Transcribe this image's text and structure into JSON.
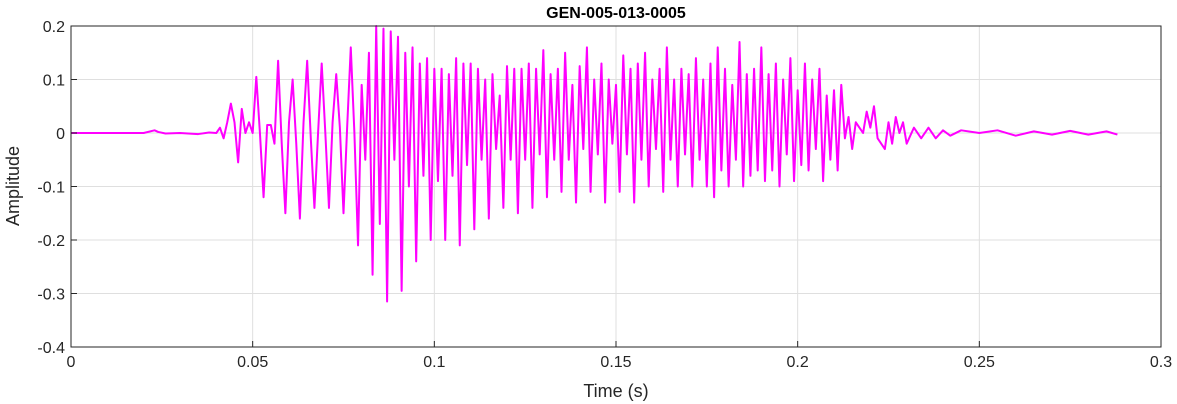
{
  "chart_data": {
    "type": "line",
    "title": "GEN-005-013-0005",
    "xlabel": "Time (s)",
    "ylabel": "Amplitude",
    "xlim": [
      0,
      0.3
    ],
    "ylim": [
      -0.4,
      0.2
    ],
    "xticks": [
      0,
      0.05,
      0.1,
      0.15,
      0.2,
      0.25,
      0.3
    ],
    "xtick_labels": [
      "0",
      "0.05",
      "0.1",
      "0.15",
      "0.2",
      "0.25",
      "0.3"
    ],
    "yticks": [
      -0.4,
      -0.3,
      -0.2,
      -0.1,
      0,
      0.1,
      0.2
    ],
    "ytick_labels": [
      "-0.4",
      "-0.3",
      "-0.2",
      "-0.1",
      "0",
      "0.1",
      "0.2"
    ],
    "grid": true,
    "legend": "none",
    "series": [
      {
        "color": "#ff00ff",
        "points": [
          [
            0,
            0
          ],
          [
            0.005,
            0.0
          ],
          [
            0.01,
            0.0
          ],
          [
            0.015,
            0.0
          ],
          [
            0.02,
            0.0
          ],
          [
            0.023,
            0.005
          ],
          [
            0.024,
            0.002
          ],
          [
            0.026,
            -0.001
          ],
          [
            0.03,
            0.0
          ],
          [
            0.035,
            -0.002
          ],
          [
            0.038,
            0.001
          ],
          [
            0.04,
            0.0
          ],
          [
            0.041,
            0.01
          ],
          [
            0.042,
            -0.01
          ],
          [
            0.043,
            0.02
          ],
          [
            0.044,
            0.055
          ],
          [
            0.045,
            0.02
          ],
          [
            0.046,
            -0.055
          ],
          [
            0.047,
            0.045
          ],
          [
            0.048,
            0.0
          ],
          [
            0.049,
            0.02
          ],
          [
            0.05,
            0.0
          ],
          [
            0.051,
            0.105
          ],
          [
            0.052,
            0.0
          ],
          [
            0.053,
            -0.12
          ],
          [
            0.054,
            0.015
          ],
          [
            0.055,
            0.015
          ],
          [
            0.056,
            -0.02
          ],
          [
            0.057,
            0.135
          ],
          [
            0.058,
            -0.02
          ],
          [
            0.059,
            -0.15
          ],
          [
            0.06,
            0.02
          ],
          [
            0.061,
            0.1
          ],
          [
            0.062,
            -0.02
          ],
          [
            0.063,
            -0.16
          ],
          [
            0.064,
            0.02
          ],
          [
            0.065,
            0.135
          ],
          [
            0.066,
            -0.01
          ],
          [
            0.067,
            -0.14
          ],
          [
            0.068,
            0.0
          ],
          [
            0.069,
            0.13
          ],
          [
            0.07,
            0.0
          ],
          [
            0.071,
            -0.14
          ],
          [
            0.072,
            0.02
          ],
          [
            0.073,
            0.11
          ],
          [
            0.074,
            0.01
          ],
          [
            0.075,
            -0.15
          ],
          [
            0.076,
            0.01
          ],
          [
            0.077,
            0.16
          ],
          [
            0.078,
            0.0
          ],
          [
            0.079,
            -0.21
          ],
          [
            0.08,
            0.09
          ],
          [
            0.081,
            -0.05
          ],
          [
            0.082,
            0.15
          ],
          [
            0.083,
            -0.265
          ],
          [
            0.084,
            0.2
          ],
          [
            0.085,
            -0.17
          ],
          [
            0.086,
            0.195
          ],
          [
            0.087,
            -0.315
          ],
          [
            0.088,
            0.19
          ],
          [
            0.089,
            -0.05
          ],
          [
            0.09,
            0.18
          ],
          [
            0.091,
            -0.295
          ],
          [
            0.092,
            0.15
          ],
          [
            0.093,
            -0.1
          ],
          [
            0.094,
            0.16
          ],
          [
            0.095,
            -0.24
          ],
          [
            0.096,
            0.13
          ],
          [
            0.097,
            -0.08
          ],
          [
            0.098,
            0.14
          ],
          [
            0.099,
            -0.2
          ],
          [
            0.1,
            0.12
          ],
          [
            0.101,
            -0.09
          ],
          [
            0.102,
            0.12
          ],
          [
            0.103,
            -0.2
          ],
          [
            0.104,
            0.11
          ],
          [
            0.105,
            -0.08
          ],
          [
            0.106,
            0.14
          ],
          [
            0.107,
            -0.21
          ],
          [
            0.108,
            0.13
          ],
          [
            0.109,
            -0.06
          ],
          [
            0.11,
            0.13
          ],
          [
            0.111,
            -0.18
          ],
          [
            0.112,
            0.12
          ],
          [
            0.113,
            -0.05
          ],
          [
            0.114,
            0.1
          ],
          [
            0.115,
            -0.16
          ],
          [
            0.116,
            0.11
          ],
          [
            0.117,
            -0.03
          ],
          [
            0.118,
            0.07
          ],
          [
            0.119,
            -0.14
          ],
          [
            0.12,
            0.125
          ],
          [
            0.121,
            -0.05
          ],
          [
            0.122,
            0.12
          ],
          [
            0.123,
            -0.15
          ],
          [
            0.124,
            0.12
          ],
          [
            0.125,
            -0.05
          ],
          [
            0.126,
            0.13
          ],
          [
            0.127,
            -0.14
          ],
          [
            0.128,
            0.12
          ],
          [
            0.129,
            -0.04
          ],
          [
            0.13,
            0.155
          ],
          [
            0.131,
            -0.12
          ],
          [
            0.132,
            0.11
          ],
          [
            0.133,
            -0.05
          ],
          [
            0.134,
            0.12
          ],
          [
            0.135,
            -0.11
          ],
          [
            0.136,
            0.15
          ],
          [
            0.137,
            -0.05
          ],
          [
            0.138,
            0.09
          ],
          [
            0.139,
            -0.13
          ],
          [
            0.14,
            0.125
          ],
          [
            0.141,
            -0.03
          ],
          [
            0.142,
            0.16
          ],
          [
            0.143,
            -0.11
          ],
          [
            0.144,
            0.1
          ],
          [
            0.145,
            -0.04
          ],
          [
            0.146,
            0.13
          ],
          [
            0.147,
            -0.13
          ],
          [
            0.148,
            0.1
          ],
          [
            0.149,
            -0.02
          ],
          [
            0.15,
            0.09
          ],
          [
            0.151,
            -0.11
          ],
          [
            0.152,
            0.145
          ],
          [
            0.153,
            -0.04
          ],
          [
            0.154,
            0.12
          ],
          [
            0.155,
            -0.13
          ],
          [
            0.156,
            0.13
          ],
          [
            0.157,
            -0.05
          ],
          [
            0.158,
            0.15
          ],
          [
            0.159,
            -0.1
          ],
          [
            0.16,
            0.1
          ],
          [
            0.161,
            -0.03
          ],
          [
            0.162,
            0.12
          ],
          [
            0.163,
            -0.11
          ],
          [
            0.164,
            0.16
          ],
          [
            0.165,
            -0.05
          ],
          [
            0.166,
            0.1
          ],
          [
            0.167,
            -0.1
          ],
          [
            0.168,
            0.12
          ],
          [
            0.169,
            -0.04
          ],
          [
            0.17,
            0.11
          ],
          [
            0.171,
            -0.1
          ],
          [
            0.172,
            0.14
          ],
          [
            0.173,
            -0.05
          ],
          [
            0.174,
            0.1
          ],
          [
            0.175,
            -0.1
          ],
          [
            0.176,
            0.13
          ],
          [
            0.177,
            -0.12
          ],
          [
            0.178,
            0.16
          ],
          [
            0.179,
            -0.07
          ],
          [
            0.18,
            0.12
          ],
          [
            0.181,
            -0.1
          ],
          [
            0.182,
            0.09
          ],
          [
            0.183,
            -0.05
          ],
          [
            0.184,
            0.17
          ],
          [
            0.185,
            -0.1
          ],
          [
            0.186,
            0.11
          ],
          [
            0.187,
            -0.08
          ],
          [
            0.188,
            0.12
          ],
          [
            0.189,
            -0.07
          ],
          [
            0.19,
            0.16
          ],
          [
            0.191,
            -0.09
          ],
          [
            0.192,
            0.11
          ],
          [
            0.193,
            -0.07
          ],
          [
            0.194,
            0.13
          ],
          [
            0.195,
            -0.1
          ],
          [
            0.196,
            0.1
          ],
          [
            0.197,
            -0.04
          ],
          [
            0.198,
            0.14
          ],
          [
            0.199,
            -0.09
          ],
          [
            0.2,
            0.08
          ],
          [
            0.201,
            -0.06
          ],
          [
            0.202,
            0.13
          ],
          [
            0.203,
            -0.07
          ],
          [
            0.204,
            0.1
          ],
          [
            0.205,
            -0.03
          ],
          [
            0.206,
            0.12
          ],
          [
            0.207,
            -0.09
          ],
          [
            0.208,
            0.07
          ],
          [
            0.209,
            -0.05
          ],
          [
            0.21,
            0.08
          ],
          [
            0.211,
            -0.07
          ],
          [
            0.212,
            0.09
          ],
          [
            0.213,
            -0.01
          ],
          [
            0.214,
            0.03
          ],
          [
            0.215,
            -0.03
          ],
          [
            0.216,
            0.02
          ],
          [
            0.218,
            0.0
          ],
          [
            0.219,
            0.04
          ],
          [
            0.22,
            0.01
          ],
          [
            0.221,
            0.05
          ],
          [
            0.222,
            -0.01
          ],
          [
            0.224,
            -0.03
          ],
          [
            0.225,
            0.02
          ],
          [
            0.226,
            -0.02
          ],
          [
            0.227,
            0.03
          ],
          [
            0.228,
            0.0
          ],
          [
            0.229,
            0.02
          ],
          [
            0.23,
            -0.02
          ],
          [
            0.232,
            0.01
          ],
          [
            0.234,
            -0.01
          ],
          [
            0.236,
            0.01
          ],
          [
            0.238,
            -0.01
          ],
          [
            0.24,
            0.005
          ],
          [
            0.242,
            -0.005
          ],
          [
            0.245,
            0.005
          ],
          [
            0.25,
            0.0
          ],
          [
            0.255,
            0.005
          ],
          [
            0.26,
            -0.005
          ],
          [
            0.265,
            0.003
          ],
          [
            0.27,
            -0.003
          ],
          [
            0.275,
            0.004
          ],
          [
            0.28,
            -0.003
          ],
          [
            0.285,
            0.003
          ],
          [
            0.288,
            -0.003
          ]
        ]
      }
    ]
  }
}
